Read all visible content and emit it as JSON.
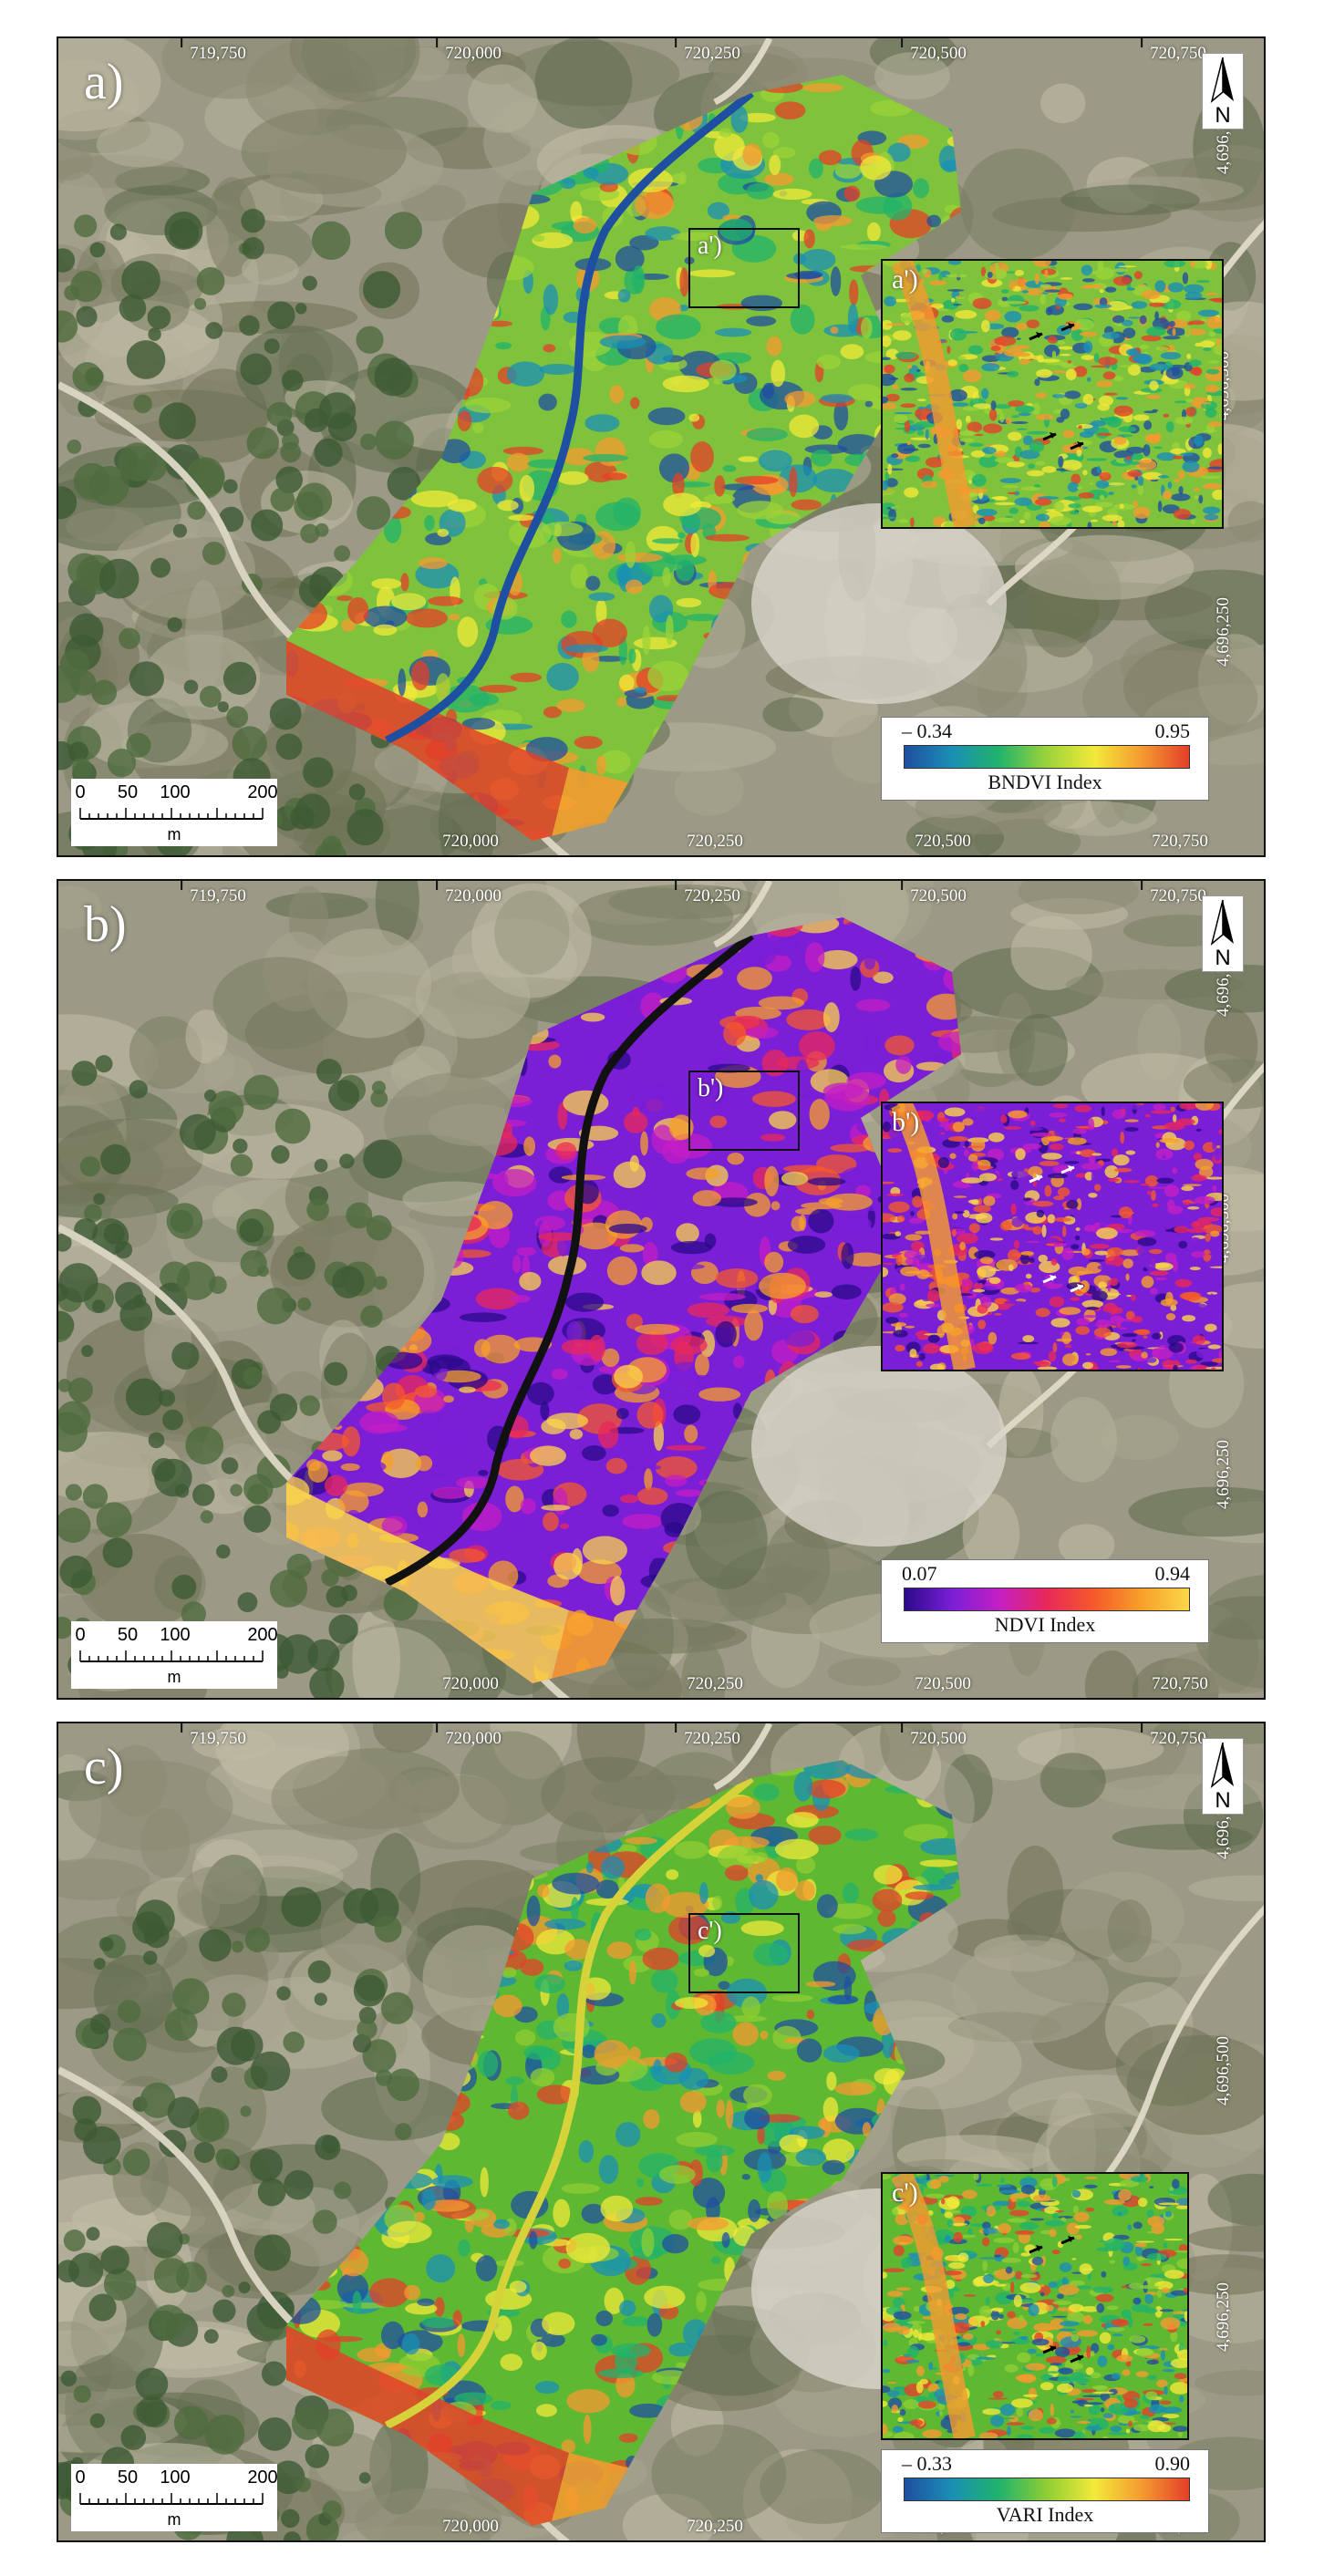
{
  "figure": {
    "panels": [
      {
        "letter": "a)",
        "inset_label": "a')",
        "index_name": "BNDVI Index",
        "legend_min": "– 0.34",
        "legend_max": "0.95",
        "palette": [
          "#1f4fa0",
          "#1a8fb5",
          "#21b36b",
          "#9bd33a",
          "#f2e93a",
          "#f59a30",
          "#e3402a"
        ],
        "dominant": "#7fc23b"
      },
      {
        "letter": "b)",
        "inset_label": "b')",
        "index_name": "NDVI Index",
        "legend_min": "0.07",
        "legend_max": "0.94",
        "palette": [
          "#2b0a8a",
          "#7a1fd6",
          "#c41fc4",
          "#e8285a",
          "#f55a2a",
          "#f7a02a",
          "#fbd64a"
        ],
        "dominant": "#7a1fd6"
      },
      {
        "letter": "c)",
        "inset_label": "c')",
        "index_name": "VARI Index",
        "legend_min": "– 0.33",
        "legend_max": "0.90",
        "palette": [
          "#1f4fa0",
          "#1a8fb5",
          "#21b36b",
          "#8fce34",
          "#f2e93a",
          "#f59a30",
          "#e3402a"
        ],
        "dominant": "#5fb832"
      }
    ],
    "top_ticks": [
      "719,750",
      "720,000",
      "720,250",
      "720,500",
      "720,750"
    ],
    "bottom_ticks": [
      "720,000",
      "720,250",
      "720,500",
      "720,750"
    ],
    "right_ticks": [
      "4,696,750",
      "4,696,500",
      "4,696,250"
    ],
    "north_label": "N",
    "scale": {
      "labels": [
        "0",
        "50",
        "100",
        "200"
      ],
      "unit": "m"
    }
  }
}
